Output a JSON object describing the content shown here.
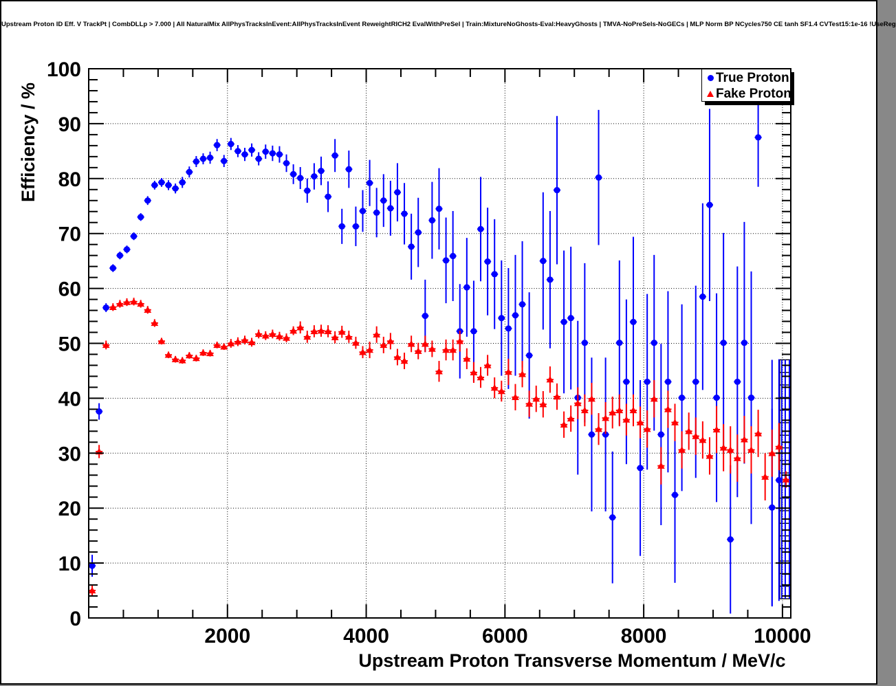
{
  "title": "Upstream Proton ID Eff. V TrackPt | CombDLLp > 7.000 | All NaturalMix AllPhysTracksInEvent:AllPhysTracksInEvent ReweightRICH2 EvalWithPreSel | Train:MixtureNoGhosts-Eval:HeavyGhosts | TMVA-NoPreSels-NoGECs | MLP Norm BP NCycles750 CE tanh SF1.4 CVTest15:1e-16 !UseReg",
  "legend": {
    "position": "top-right",
    "items": [
      {
        "label": "True Proton",
        "marker": "circle",
        "color": "#0000ff"
      },
      {
        "label": "Fake Proton",
        "marker": "triangle",
        "color": "#ff0000"
      }
    ]
  },
  "chart_data": {
    "type": "scatter",
    "title": "Upstream Proton ID Eff. V TrackPt | CombDLLp > 7.000",
    "xlabel": "Upstream Proton Transverse Momentum / MeV/c",
    "ylabel": "Efficiency / %",
    "xlim": [
      0,
      10120
    ],
    "ylim": [
      0,
      100
    ],
    "grid": "dotted",
    "x_major_ticks": [
      2000,
      4000,
      6000,
      8000,
      10000
    ],
    "x_minor_step": 500,
    "y_major_ticks": [
      0,
      10,
      20,
      30,
      40,
      50,
      60,
      70,
      80,
      90,
      100
    ],
    "y_minor_step": 2,
    "bin_half_width_mev": 50,
    "series": [
      {
        "name": "True Proton",
        "color": "#0000ff",
        "marker": "circle",
        "x": [
          50,
          150,
          250,
          350,
          450,
          550,
          650,
          750,
          850,
          950,
          1050,
          1150,
          1250,
          1350,
          1450,
          1550,
          1650,
          1750,
          1850,
          1950,
          2050,
          2150,
          2250,
          2350,
          2450,
          2550,
          2650,
          2750,
          2850,
          2950,
          3050,
          3150,
          3250,
          3350,
          3450,
          3550,
          3650,
          3750,
          3850,
          3950,
          4050,
          4150,
          4250,
          4350,
          4450,
          4550,
          4650,
          4750,
          4850,
          4950,
          5050,
          5150,
          5250,
          5350,
          5450,
          5550,
          5650,
          5750,
          5850,
          5950,
          6050,
          6150,
          6250,
          6350,
          6550,
          6650,
          6750,
          6850,
          6950,
          7050,
          7150,
          7250,
          7350,
          7450,
          7550,
          7650,
          7750,
          7850,
          7950,
          8050,
          8150,
          8250,
          8350,
          8450,
          8550,
          8750,
          8850,
          8950,
          9050,
          9150,
          9250,
          9350,
          9450,
          9550,
          9650,
          9850,
          9950
        ],
        "y": [
          9.5,
          37.6,
          56.5,
          63.7,
          66.0,
          67.1,
          69.5,
          73.0,
          76.0,
          78.8,
          79.3,
          78.8,
          78.2,
          79.3,
          81.2,
          83.1,
          83.6,
          83.8,
          86.1,
          83.2,
          86.3,
          85.0,
          84.4,
          85.2,
          83.6,
          84.9,
          84.6,
          84.4,
          82.8,
          80.8,
          80.1,
          77.8,
          80.4,
          81.4,
          76.7,
          84.2,
          71.3,
          81.7,
          71.3,
          74.1,
          79.2,
          73.8,
          76.0,
          74.6,
          77.5,
          73.6,
          67.6,
          70.2,
          55.0,
          72.4,
          74.5,
          65.1,
          65.9,
          52.2,
          60.2,
          52.2,
          70.8,
          64.9,
          62.6,
          54.6,
          52.7,
          55.1,
          57.1,
          47.8,
          65.0,
          61.6,
          77.9,
          53.9,
          54.6,
          40.1,
          50.1,
          33.4,
          80.2,
          33.4,
          18.3,
          50.1,
          43.0,
          53.9,
          27.3,
          43.0,
          50.1,
          33.4,
          43.0,
          22.4,
          40.1,
          43.0,
          58.5,
          75.2,
          40.1,
          50.1,
          14.3,
          43.0,
          50.1,
          40.1,
          87.5,
          20.1,
          25.1
        ],
        "yerr": [
          2.0,
          1.5,
          0.8,
          0.7,
          0.7,
          0.7,
          0.7,
          0.7,
          0.8,
          0.8,
          0.8,
          0.9,
          0.9,
          1.0,
          1.0,
          1.0,
          1.0,
          1.1,
          1.1,
          1.1,
          1.1,
          1.1,
          1.2,
          1.2,
          1.2,
          1.3,
          1.4,
          1.5,
          1.6,
          1.8,
          2.0,
          2.2,
          2.4,
          2.6,
          2.8,
          3.0,
          3.2,
          3.4,
          3.6,
          3.8,
          4.2,
          4.5,
          4.8,
          5.0,
          5.3,
          5.6,
          6.0,
          6.3,
          6.6,
          7.0,
          7.4,
          7.8,
          8.2,
          8.6,
          9.0,
          9.2,
          9.5,
          9.8,
          10.0,
          10.5,
          11.0,
          11.0,
          11.5,
          11.5,
          12.5,
          12.5,
          13.5,
          13.0,
          13.0,
          14.0,
          14.5,
          14.0,
          12.3,
          14.0,
          12.0,
          15.0,
          15.0,
          15.5,
          16.0,
          16.0,
          16.0,
          16.5,
          16.5,
          16.0,
          17.0,
          17.5,
          17.0,
          17.5,
          19.0,
          20.0,
          13.5,
          21.0,
          22.0,
          23.0,
          9.0,
          18.0,
          22.0
        ]
      },
      {
        "name": "Fake Proton",
        "color": "#ff0000",
        "marker": "triangle",
        "x": [
          50,
          150,
          250,
          350,
          450,
          550,
          650,
          750,
          850,
          950,
          1050,
          1150,
          1250,
          1350,
          1450,
          1550,
          1650,
          1750,
          1850,
          1950,
          2050,
          2150,
          2250,
          2350,
          2450,
          2550,
          2650,
          2750,
          2850,
          2950,
          3050,
          3150,
          3250,
          3350,
          3450,
          3550,
          3650,
          3750,
          3850,
          3950,
          4050,
          4150,
          4250,
          4350,
          4450,
          4550,
          4650,
          4750,
          4850,
          4950,
          5050,
          5150,
          5250,
          5350,
          5450,
          5550,
          5650,
          5750,
          5850,
          5950,
          6050,
          6150,
          6250,
          6350,
          6450,
          6550,
          6650,
          6750,
          6850,
          6950,
          7050,
          7150,
          7250,
          7350,
          7450,
          7550,
          7650,
          7750,
          7850,
          7950,
          8050,
          8150,
          8250,
          8350,
          8450,
          8550,
          8650,
          8750,
          8850,
          8950,
          9050,
          9150,
          9250,
          9350,
          9450,
          9550,
          9650,
          9750,
          9850,
          9950,
          10050
        ],
        "y": [
          5.0,
          30.3,
          49.7,
          56.6,
          57.2,
          57.5,
          57.6,
          57.2,
          56.1,
          53.7,
          50.4,
          47.9,
          47.1,
          46.9,
          47.8,
          47.3,
          48.3,
          48.2,
          49.7,
          49.4,
          50.0,
          50.3,
          50.6,
          50.2,
          51.7,
          51.4,
          51.7,
          51.3,
          51.0,
          52.3,
          52.9,
          51.2,
          52.2,
          52.3,
          52.2,
          51.1,
          52.1,
          51.2,
          50.1,
          48.4,
          48.8,
          51.6,
          49.7,
          50.4,
          47.5,
          46.8,
          49.9,
          48.6,
          49.9,
          49.0,
          44.9,
          48.8,
          48.8,
          50.4,
          47.2,
          44.7,
          43.8,
          46.0,
          41.9,
          41.3,
          44.8,
          40.2,
          44.4,
          39.0,
          39.9,
          38.9,
          43.4,
          40.3,
          35.2,
          36.3,
          39.1,
          37.8,
          39.9,
          34.4,
          36.4,
          37.4,
          37.8,
          36.1,
          37.8,
          35.6,
          34.4,
          39.9,
          27.7,
          38.0,
          35.6,
          30.6,
          34.0,
          33.1,
          32.4,
          29.5,
          34.3,
          31.0,
          30.6,
          29.1,
          32.5,
          30.6,
          33.6,
          25.7,
          30.0,
          31.2,
          25.2
        ],
        "yerr": [
          1.0,
          1.2,
          0.8,
          0.7,
          0.7,
          0.7,
          0.7,
          0.7,
          0.7,
          0.7,
          0.6,
          0.6,
          0.6,
          0.6,
          0.6,
          0.6,
          0.6,
          0.6,
          0.6,
          0.6,
          0.8,
          0.8,
          0.8,
          0.8,
          0.8,
          0.8,
          0.8,
          0.8,
          0.8,
          0.8,
          1.1,
          1.1,
          1.1,
          1.1,
          1.1,
          1.1,
          1.1,
          1.1,
          1.1,
          1.1,
          1.5,
          1.5,
          1.5,
          1.5,
          1.5,
          1.5,
          1.5,
          1.5,
          1.5,
          1.5,
          1.9,
          1.9,
          1.9,
          1.9,
          1.9,
          1.9,
          1.9,
          1.9,
          1.9,
          1.9,
          2.4,
          2.4,
          2.4,
          2.4,
          2.4,
          2.4,
          2.4,
          2.4,
          2.4,
          2.4,
          2.9,
          2.9,
          2.9,
          2.9,
          2.9,
          2.9,
          2.9,
          2.9,
          2.9,
          2.9,
          3.4,
          3.4,
          3.4,
          3.4,
          3.4,
          3.4,
          3.4,
          3.4,
          3.4,
          3.4,
          4.3,
          4.3,
          4.3,
          4.3,
          4.3,
          4.3,
          4.3,
          4.3,
          4.3,
          4.3,
          1.5
        ]
      }
    ],
    "overflow_pileup_column": {
      "x_min": 9960,
      "x_max": 10120,
      "y_min": 3.5,
      "y_max": 47,
      "rungs": 20,
      "vline_x": [
        9850,
        9990,
        10040,
        10100
      ],
      "rung_color": "#000000",
      "vline_color": "#0000ff"
    }
  }
}
